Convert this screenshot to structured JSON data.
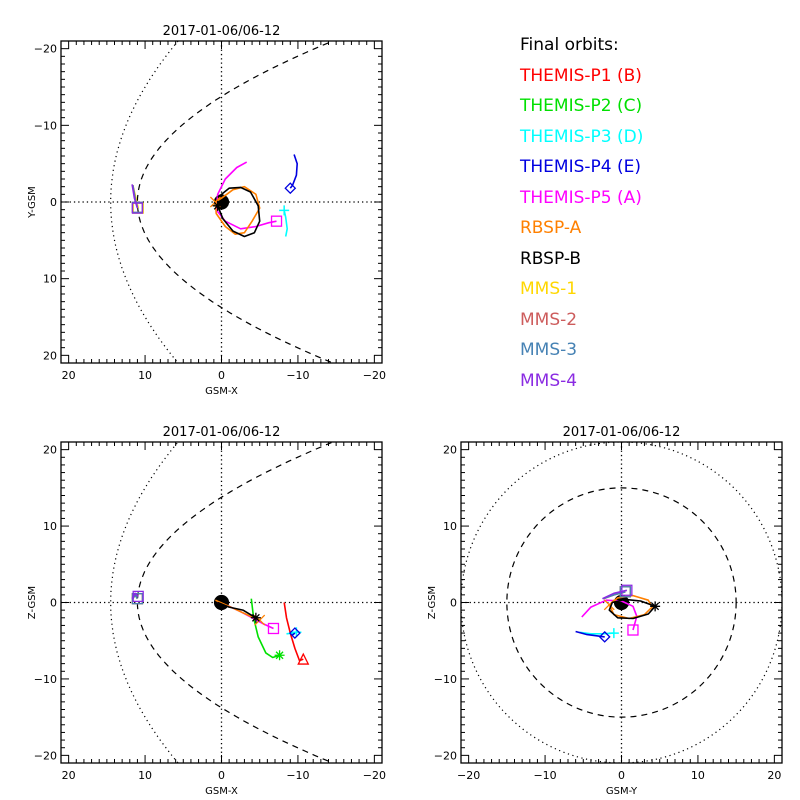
{
  "chart_data": [
    {
      "type": "scatter",
      "panel": "x-y",
      "title": "2017-01-06/06-12",
      "xlabel": "GSM-X",
      "ylabel": "Y-GSM",
      "xlim": [
        21,
        -21
      ],
      "ylim": [
        -21,
        21
      ],
      "xticks": [
        "20",
        "10",
        "0",
        "-10",
        "-20"
      ],
      "xtick_values": [
        20,
        10,
        0,
        -10,
        -20
      ],
      "yticks": [
        "-20",
        "-10",
        "0",
        "10",
        "20"
      ],
      "ytick_values": [
        -20,
        -10,
        0,
        10,
        20
      ],
      "y_inverted": true,
      "boundaries": {
        "bow_shock": {
          "style": "dotted",
          "nose": 14.5
        },
        "magnetopause": {
          "style": "dashed",
          "nose": 11
        }
      },
      "series": [
        {
          "name": "THEMIS-P1 (B)",
          "points": [],
          "marker": "triangle"
        },
        {
          "name": "THEMIS-P2 (C)",
          "points": [],
          "marker": "asterisk"
        },
        {
          "name": "THEMIS-P3 (D)",
          "points": [
            [
              -8.4,
              4.5
            ],
            [
              -8.6,
              3.5
            ],
            [
              -8.4,
              2.0
            ],
            [
              -8.2,
              1.1
            ]
          ],
          "marker": "plus"
        },
        {
          "name": "THEMIS-P4 (E)",
          "points": [
            [
              -9.5,
              -6.2
            ],
            [
              -9.9,
              -5.0
            ],
            [
              -9.8,
              -3.5
            ],
            [
              -9.3,
              -2.2
            ],
            [
              -9.0,
              -1.8
            ]
          ],
          "marker": "diamond"
        },
        {
          "name": "THEMIS-P5 (A)",
          "points": [
            [
              -3.3,
              -5.2
            ],
            [
              -2.0,
              -4.5
            ],
            [
              -0.5,
              -3.0
            ],
            [
              0.5,
              -1.0
            ],
            [
              0.7,
              1.0
            ],
            [
              -0.5,
              2.5
            ],
            [
              -2.5,
              3.5
            ],
            [
              -4.5,
              3.2
            ],
            [
              -6.2,
              2.7
            ],
            [
              -7.2,
              2.5
            ]
          ],
          "marker": "square"
        },
        {
          "name": "RBSP-A",
          "points": [
            [
              0.8,
              0.0
            ],
            [
              0.7,
              1.5
            ],
            [
              -0.5,
              3.2
            ],
            [
              -1.8,
              4.2
            ],
            [
              -3.0,
              4.0
            ],
            [
              -4.0,
              2.5
            ],
            [
              -5.0,
              0.8
            ],
            [
              -4.5,
              -1.0
            ],
            [
              -3.0,
              -2.0
            ],
            [
              -1.5,
              -1.6
            ],
            [
              0.0,
              -0.5
            ],
            [
              0.8,
              0.0
            ]
          ],
          "marker": "x"
        },
        {
          "name": "RBSP-B",
          "points": [
            [
              0.5,
              -0.6
            ],
            [
              -1.0,
              -1.8
            ],
            [
              -2.5,
              -1.9
            ],
            [
              -3.8,
              -1.3
            ],
            [
              -4.8,
              0.5
            ],
            [
              -5.0,
              2.5
            ],
            [
              -4.3,
              4.0
            ],
            [
              -3.0,
              4.5
            ],
            [
              -1.5,
              3.8
            ],
            [
              -0.2,
              2.2
            ],
            [
              0.5,
              0.5
            ]
          ],
          "marker": "asterisk"
        },
        {
          "name": "MMS-1",
          "points": [
            [
              11.6,
              -2.2
            ],
            [
              11.2,
              -0.5
            ],
            [
              10.9,
              0.8
            ]
          ],
          "marker": "square"
        },
        {
          "name": "MMS-2",
          "points": [
            [
              11.6,
              -2.2
            ],
            [
              11.3,
              -0.5
            ],
            [
              11.0,
              0.7
            ]
          ],
          "marker": "square"
        },
        {
          "name": "MMS-3",
          "points": [
            [
              11.6,
              -2.2
            ],
            [
              11.3,
              -0.5
            ],
            [
              11.0,
              0.7
            ]
          ],
          "marker": "square"
        },
        {
          "name": "MMS-4",
          "points": [
            [
              11.7,
              -2.3
            ],
            [
              11.4,
              -0.5
            ],
            [
              11.0,
              0.8
            ]
          ],
          "marker": "square"
        }
      ]
    },
    {
      "type": "scatter",
      "panel": "x-z",
      "title": "2017-01-06/06-12",
      "xlabel": "GSM-X",
      "ylabel": "Z-GSM",
      "xlim": [
        21,
        -21
      ],
      "ylim": [
        -21,
        21
      ],
      "xticks": [
        "20",
        "10",
        "0",
        "-10",
        "-20"
      ],
      "xtick_values": [
        20,
        10,
        0,
        -10,
        -20
      ],
      "yticks": [
        "20",
        "10",
        "0",
        "-10",
        "-20"
      ],
      "ytick_values": [
        20,
        10,
        0,
        -10,
        -20
      ],
      "y_inverted": false,
      "boundaries": {
        "bow_shock": {
          "style": "dotted",
          "nose": 14.5
        },
        "magnetopause": {
          "style": "dashed",
          "nose": 11
        }
      },
      "series": [
        {
          "name": "THEMIS-P1 (B)",
          "points": [
            [
              -8.2,
              0.0
            ],
            [
              -8.5,
              -2.0
            ],
            [
              -9.0,
              -4.0
            ],
            [
              -9.6,
              -6.0
            ],
            [
              -10.2,
              -7.6
            ],
            [
              -10.7,
              -7.4
            ]
          ],
          "marker": "triangle"
        },
        {
          "name": "THEMIS-P2 (C)",
          "points": [
            [
              -3.9,
              0.5
            ],
            [
              -4.2,
              -2.0
            ],
            [
              -4.8,
              -4.5
            ],
            [
              -5.8,
              -6.6
            ],
            [
              -6.7,
              -7.2
            ],
            [
              -7.6,
              -6.9
            ]
          ],
          "marker": "asterisk"
        },
        {
          "name": "THEMIS-P3 (D)",
          "points": [
            [
              -8.5,
              -4.1
            ],
            [
              -9.3,
              -4.0
            ],
            [
              -9.8,
              -3.9
            ]
          ],
          "marker": "plus"
        },
        {
          "name": "THEMIS-P4 (E)",
          "points": [
            [
              -9.2,
              -4.3
            ],
            [
              -9.6,
              -4.0
            ]
          ],
          "marker": "diamond"
        },
        {
          "name": "THEMIS-P5 (A)",
          "points": [
            [
              0.5,
              0.0
            ],
            [
              -1.0,
              -0.5
            ],
            [
              -2.5,
              -1.2
            ],
            [
              -4.0,
              -2.0
            ],
            [
              -5.5,
              -2.8
            ],
            [
              -6.8,
              -3.4
            ]
          ],
          "marker": "square"
        },
        {
          "name": "RBSP-A",
          "points": [
            [
              0.8,
              0.3
            ],
            [
              -1.0,
              -0.5
            ],
            [
              -2.5,
              -1.2
            ],
            [
              -4.0,
              -1.9
            ],
            [
              -5.0,
              -2.3
            ]
          ],
          "marker": "x"
        },
        {
          "name": "RBSP-B",
          "points": [
            [
              0.5,
              0.0
            ],
            [
              -1.0,
              -0.6
            ],
            [
              -2.8,
              -1.0
            ],
            [
              -4.5,
              -2.0
            ]
          ],
          "marker": "asterisk"
        },
        {
          "name": "MMS-1",
          "points": [
            [
              11.6,
              0.5
            ],
            [
              11.3,
              1.0
            ],
            [
              11.0,
              0.5
            ]
          ],
          "marker": "square"
        },
        {
          "name": "MMS-2",
          "points": [
            [
              11.6,
              0.5
            ],
            [
              11.3,
              1.0
            ],
            [
              11.0,
              0.5
            ]
          ],
          "marker": "square"
        },
        {
          "name": "MMS-3",
          "points": [
            [
              11.6,
              0.5
            ],
            [
              11.3,
              1.0
            ],
            [
              11.0,
              0.5
            ]
          ],
          "marker": "square"
        },
        {
          "name": "MMS-4",
          "points": [
            [
              11.7,
              0.5
            ],
            [
              11.3,
              1.2
            ],
            [
              10.9,
              0.8
            ]
          ],
          "marker": "square"
        }
      ]
    },
    {
      "type": "scatter",
      "panel": "y-z",
      "title": "2017-01-06/06-12",
      "xlabel": "GSM-Y",
      "ylabel": "Z-GSM",
      "xlim": [
        -21,
        21
      ],
      "ylim": [
        -21,
        21
      ],
      "xticks": [
        "-20",
        "-10",
        "0",
        "10",
        "20"
      ],
      "xtick_values": [
        -20,
        -10,
        0,
        10,
        20
      ],
      "yticks": [
        "20",
        "10",
        "0",
        "-10",
        "-20"
      ],
      "ytick_values": [
        20,
        10,
        0,
        -10,
        -20
      ],
      "y_inverted": false,
      "boundaries": {
        "bow_shock": {
          "style": "dotted",
          "radius": 21
        },
        "magnetopause": {
          "style": "dashed",
          "radius": 15
        }
      },
      "series": [
        {
          "name": "THEMIS-P1 (B)",
          "points": [],
          "marker": "triangle"
        },
        {
          "name": "THEMIS-P2 (C)",
          "points": [],
          "marker": "asterisk"
        },
        {
          "name": "THEMIS-P3 (D)",
          "points": [
            [
              -5.5,
              -3.9
            ],
            [
              -4.0,
              -4.1
            ],
            [
              -2.5,
              -4.1
            ],
            [
              -1.0,
              -4.0
            ]
          ],
          "marker": "plus"
        },
        {
          "name": "THEMIS-P4 (E)",
          "points": [
            [
              -6.0,
              -3.8
            ],
            [
              -4.5,
              -4.2
            ],
            [
              -3.0,
              -4.4
            ],
            [
              -2.2,
              -4.5
            ]
          ],
          "marker": "diamond"
        },
        {
          "name": "THEMIS-P5 (A)",
          "points": [
            [
              -5.2,
              -1.9
            ],
            [
              -4.0,
              -0.6
            ],
            [
              -2.0,
              0.3
            ],
            [
              0.0,
              0.2
            ],
            [
              1.5,
              -0.5
            ],
            [
              2.0,
              -1.8
            ],
            [
              1.5,
              -3.6
            ]
          ],
          "marker": "square"
        },
        {
          "name": "RBSP-A",
          "points": [
            [
              -1.6,
              -0.3
            ],
            [
              -0.5,
              0.6
            ],
            [
              1.5,
              0.9
            ],
            [
              3.5,
              0.3
            ],
            [
              4.0,
              -0.6
            ],
            [
              3.0,
              -1.6
            ],
            [
              1.0,
              -2.1
            ],
            [
              -1.0,
              -1.6
            ],
            [
              -1.6,
              -0.3
            ]
          ],
          "marker": "x"
        },
        {
          "name": "RBSP-B",
          "points": [
            [
              4.4,
              -0.5
            ],
            [
              3.5,
              -1.5
            ],
            [
              1.5,
              -2.1
            ],
            [
              -0.5,
              -2.0
            ],
            [
              -1.6,
              -1.0
            ],
            [
              -1.2,
              0.0
            ],
            [
              0.5,
              0.4
            ],
            [
              2.5,
              0.2
            ],
            [
              4.4,
              -0.5
            ]
          ],
          "marker": "asterisk"
        },
        {
          "name": "MMS-1",
          "points": [
            [
              -2.4,
              0.5
            ],
            [
              -1.0,
              1.0
            ],
            [
              0.5,
              1.4
            ]
          ],
          "marker": "square"
        },
        {
          "name": "MMS-2",
          "points": [
            [
              -2.4,
              0.5
            ],
            [
              -1.0,
              1.0
            ],
            [
              0.5,
              1.4
            ]
          ],
          "marker": "square"
        },
        {
          "name": "MMS-3",
          "points": [
            [
              -2.4,
              0.5
            ],
            [
              -1.0,
              1.0
            ],
            [
              0.5,
              1.4
            ]
          ],
          "marker": "square"
        },
        {
          "name": "MMS-4",
          "points": [
            [
              -2.5,
              0.5
            ],
            [
              -1.0,
              1.2
            ],
            [
              0.7,
              1.6
            ]
          ],
          "marker": "square"
        }
      ]
    }
  ],
  "legend": {
    "title": "Final orbits:",
    "entries": [
      {
        "label": "THEMIS-P1 (B)",
        "color": "#ff0000"
      },
      {
        "label": "THEMIS-P2 (C)",
        "color": "#00e000"
      },
      {
        "label": "THEMIS-P3 (D)",
        "color": "#00ffff"
      },
      {
        "label": "THEMIS-P4 (E)",
        "color": "#0000e0"
      },
      {
        "label": "THEMIS-P5 (A)",
        "color": "#ff00ff"
      },
      {
        "label": "RBSP-A",
        "color": "#ff8000"
      },
      {
        "label": "RBSP-B",
        "color": "#000000"
      },
      {
        "label": "MMS-1",
        "color": "#ffd700"
      },
      {
        "label": "MMS-2",
        "color": "#cd5c5c"
      },
      {
        "label": "MMS-3",
        "color": "#4682b4"
      },
      {
        "label": "MMS-4",
        "color": "#8a2be2"
      }
    ]
  }
}
